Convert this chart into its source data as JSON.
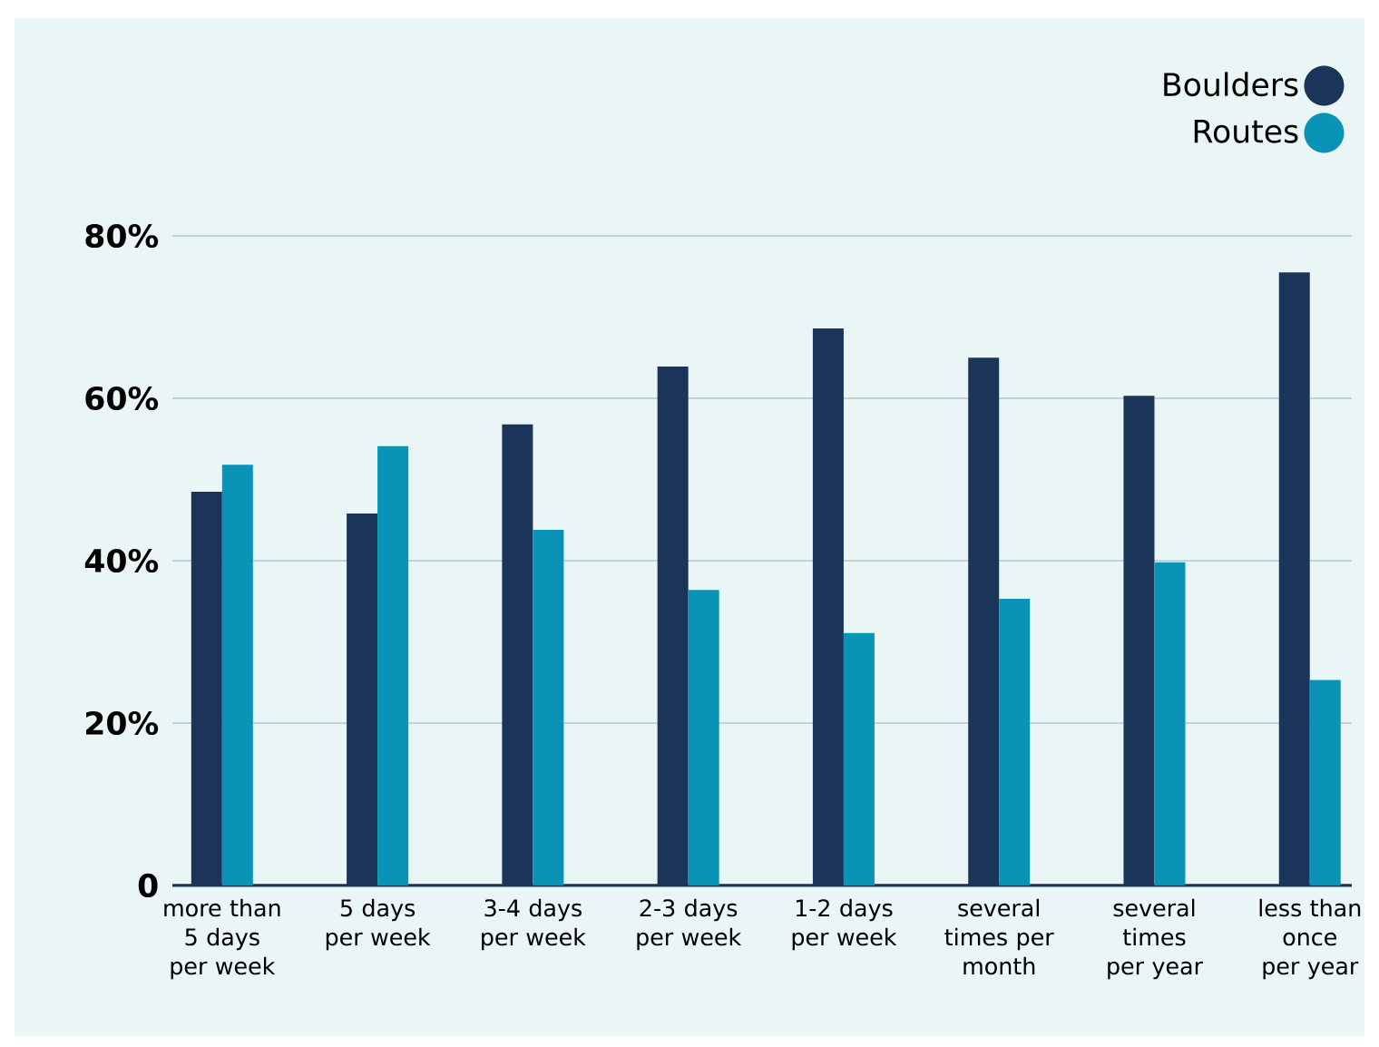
{
  "chart_data": {
    "type": "bar",
    "categories": [
      "more than 5 days per week",
      "5 days per week",
      "3-4 days per week",
      "2-3 days per week",
      "1-2 days per week",
      "several times per month",
      "several times per year",
      "less than once per year"
    ],
    "series": [
      {
        "name": "Boulders",
        "color": "#1b3459",
        "values": [
          48.5,
          45.8,
          56.8,
          63.9,
          68.6,
          65.0,
          60.3,
          75.5
        ]
      },
      {
        "name": "Routes",
        "color": "#0993b6",
        "values": [
          51.8,
          54.1,
          43.8,
          36.4,
          31.1,
          35.3,
          39.8,
          25.3
        ]
      }
    ],
    "ylim": [
      0,
      80
    ],
    "yticks": [
      0,
      {
        "value": 20,
        "label": "20%"
      },
      {
        "value": 40,
        "label": "40%"
      },
      {
        "value": 60,
        "label": "60%"
      },
      {
        "value": 80,
        "label": "80%"
      }
    ],
    "grid": "y",
    "legend": "top right"
  }
}
